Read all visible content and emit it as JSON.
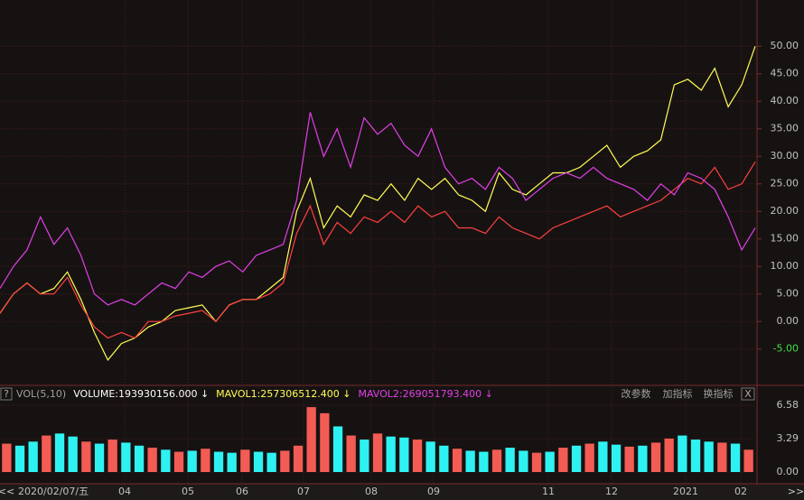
{
  "chart_data": [
    {
      "type": "line",
      "ylim": [
        -11.6,
        58.4
      ],
      "yticks": [
        {
          "value": 50,
          "label": "50.00"
        },
        {
          "value": 45,
          "label": "45.00"
        },
        {
          "value": 40,
          "label": "40.00"
        },
        {
          "value": 35,
          "label": "35.00"
        },
        {
          "value": 30,
          "label": "30.00"
        },
        {
          "value": 25,
          "label": "25.00"
        },
        {
          "value": 20,
          "label": "20.00"
        },
        {
          "value": 15,
          "label": "15.00"
        },
        {
          "value": 10,
          "label": "10.00"
        },
        {
          "value": 5,
          "label": "5.00"
        },
        {
          "value": 0,
          "label": "0.00"
        },
        {
          "value": -5,
          "label": "-5.00"
        }
      ],
      "x_labels": [
        "2020/02/07/五",
        "04",
        "05",
        "06",
        "07",
        "08",
        "09",
        "11",
        "12",
        "2021",
        "02"
      ],
      "series": [
        {
          "color": "#ffff55",
          "values": [
            1.5,
            5,
            7,
            5,
            6,
            9,
            4,
            -2,
            -7,
            -4,
            -3,
            -1,
            0,
            2,
            2.5,
            3,
            0,
            3,
            4,
            4,
            6,
            8,
            20,
            26,
            17,
            21,
            19,
            23,
            22,
            25,
            22,
            26,
            24,
            26,
            23,
            22,
            20,
            27,
            24,
            23,
            25,
            27,
            27,
            28,
            30,
            32,
            28,
            30,
            31,
            33,
            43,
            44,
            42,
            46,
            39,
            43,
            50
          ]
        },
        {
          "color": "#ff4040",
          "values": [
            1.5,
            5,
            7,
            5,
            5,
            8,
            3,
            -1,
            -3,
            -2,
            -3,
            0,
            0,
            1,
            1.5,
            2,
            0,
            3,
            4,
            4,
            5,
            7,
            16,
            21,
            14,
            18,
            16,
            19,
            18,
            20,
            18,
            21,
            19,
            20,
            17,
            17,
            16,
            19,
            17,
            16,
            15,
            17,
            18,
            19,
            20,
            21,
            19,
            20,
            21,
            22,
            24,
            26,
            25,
            28,
            24,
            25,
            29
          ]
        },
        {
          "color": "#e040e8",
          "values": [
            6,
            10,
            13,
            19,
            14,
            17,
            12,
            5,
            3,
            4,
            3,
            5,
            7,
            6,
            9,
            8,
            10,
            11,
            9,
            12,
            13,
            14,
            22,
            38,
            30,
            35,
            28,
            37,
            34,
            36,
            32,
            30,
            35,
            28,
            25,
            26,
            24,
            28,
            26,
            22,
            24,
            26,
            27,
            26,
            28,
            26,
            25,
            24,
            22,
            25,
            23,
            27,
            26,
            24,
            19,
            13,
            17
          ]
        }
      ]
    },
    {
      "type": "bar",
      "header": [
        {
          "text": "VOL(5,10)",
          "color": "#a0a0a0"
        },
        {
          "text": "VOLUME:193930156.000 ↓",
          "color": "#ffffff"
        },
        {
          "text": "MAVOL1:257306512.400 ↓",
          "color": "#ffff55"
        },
        {
          "text": "MAVOL2:269051793.400 ↓",
          "color": "#e040e8"
        }
      ],
      "ylim": [
        0,
        7.3
      ],
      "yticks": [
        {
          "value": 6.58,
          "label": "6.58"
        },
        {
          "value": 3.29,
          "label": "3.29"
        },
        {
          "value": 0,
          "label": "0.00"
        }
      ],
      "values": [
        2.8,
        2.6,
        3.0,
        3.6,
        3.8,
        3.5,
        3.0,
        2.8,
        3.2,
        2.9,
        2.6,
        2.4,
        2.2,
        2.0,
        2.1,
        2.3,
        2.0,
        1.9,
        2.2,
        2.0,
        1.9,
        2.1,
        2.6,
        6.4,
        5.8,
        4.5,
        3.6,
        3.2,
        3.8,
        3.5,
        3.4,
        3.2,
        3.0,
        2.6,
        2.3,
        2.1,
        2.0,
        2.2,
        2.4,
        2.1,
        1.9,
        2.0,
        2.4,
        2.6,
        2.8,
        3.0,
        2.7,
        2.5,
        2.6,
        2.9,
        3.3,
        3.6,
        3.2,
        3.0,
        2.9,
        2.8,
        2.2
      ],
      "colors": [
        "#f25c54",
        "#2ef2f2",
        "#2ef2f2",
        "#f25c54",
        "#2ef2f2",
        "#2ef2f2",
        "#f25c54",
        "#2ef2f2",
        "#f25c54",
        "#2ef2f2",
        "#2ef2f2",
        "#f25c54",
        "#2ef2f2",
        "#f25c54",
        "#2ef2f2",
        "#f25c54",
        "#2ef2f2",
        "#2ef2f2",
        "#f25c54",
        "#2ef2f2",
        "#2ef2f2",
        "#f25c54",
        "#f25c54",
        "#f25c54",
        "#f25c54",
        "#2ef2f2",
        "#f25c54",
        "#2ef2f2",
        "#f25c54",
        "#2ef2f2",
        "#2ef2f2",
        "#f25c54",
        "#2ef2f2",
        "#2ef2f2",
        "#f25c54",
        "#2ef2f2",
        "#2ef2f2",
        "#f25c54",
        "#2ef2f2",
        "#2ef2f2",
        "#f25c54",
        "#2ef2f2",
        "#f25c54",
        "#2ef2f2",
        "#f25c54",
        "#2ef2f2",
        "#2ef2f2",
        "#f25c54",
        "#2ef2f2",
        "#f25c54",
        "#f25c54",
        "#2ef2f2",
        "#2ef2f2",
        "#2ef2f2",
        "#f25c54",
        "#2ef2f2",
        "#f25c54"
      ]
    }
  ],
  "toolbar": {
    "help": "?",
    "buttons": [
      "改参数",
      "加指标",
      "换指标"
    ],
    "close": "X",
    "prev": "<<",
    "next": ">>"
  }
}
